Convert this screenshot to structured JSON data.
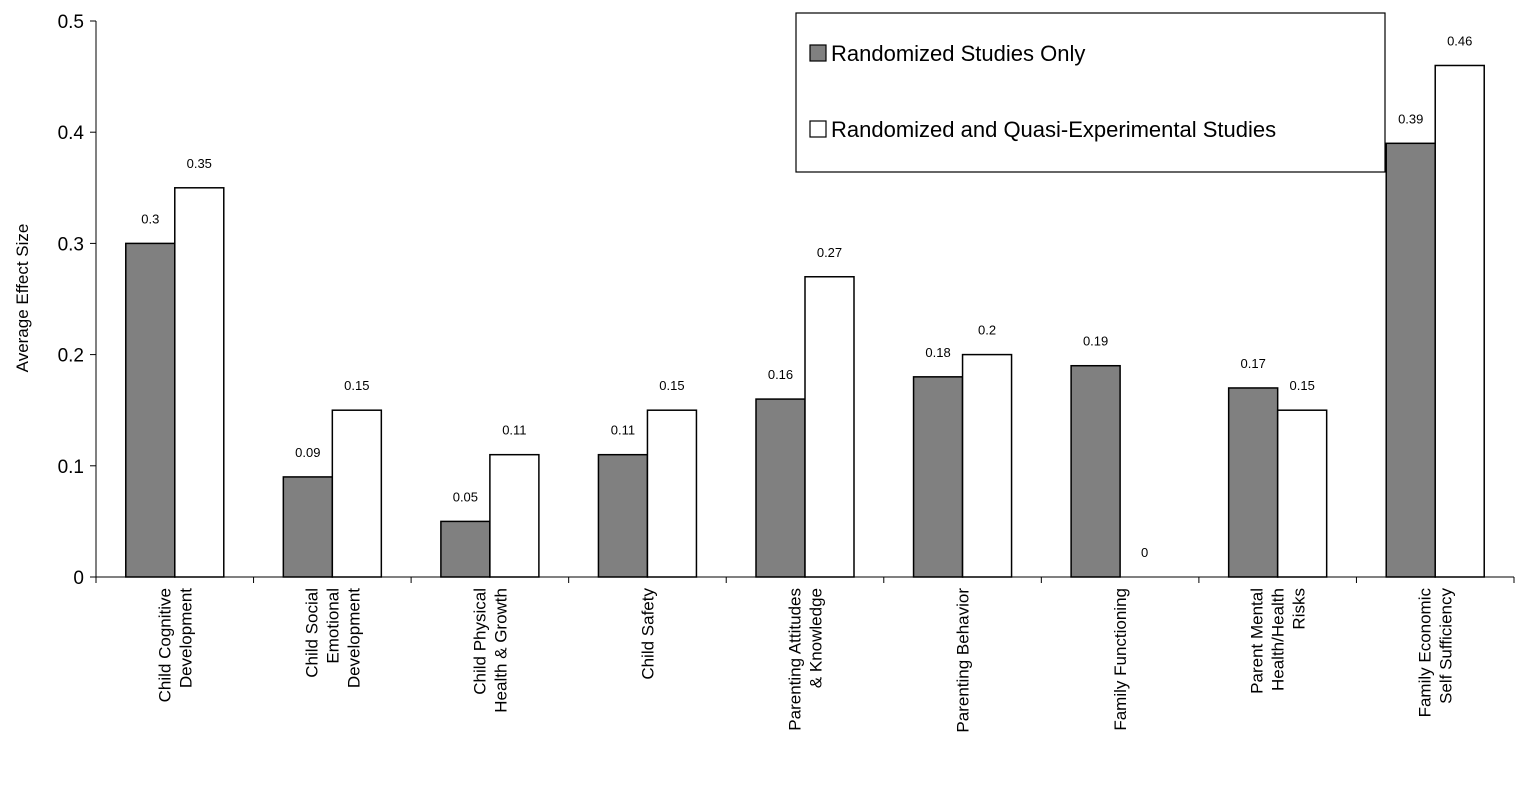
{
  "chart_data": {
    "type": "bar",
    "ylabel": "Average Effect Size",
    "ylim": [
      0,
      0.5
    ],
    "yticks": [
      "0",
      "0.1",
      "0.2",
      "0.3",
      "0.4",
      "0.5"
    ],
    "grid": false,
    "legend_position": "top-right",
    "categories": [
      [
        "Child Cognitive",
        "Development"
      ],
      [
        "Child Social",
        "Emotional",
        "Development"
      ],
      [
        "Child Physical",
        "Health & Growth"
      ],
      [
        "Child Safety"
      ],
      [
        "Parenting Attitudes",
        "& Knowledge"
      ],
      [
        "Parenting Behavior"
      ],
      [
        "Family Functioning"
      ],
      [
        "Parent Mental",
        "Health/Health",
        "Risks"
      ],
      [
        "Family Economic",
        "Self Sufficiency"
      ]
    ],
    "series": [
      {
        "name": "Randomized Studies Only",
        "color": "#808080",
        "values": [
          0.3,
          0.09,
          0.05,
          0.11,
          0.16,
          0.18,
          0.19,
          0.17,
          0.39
        ],
        "labels": [
          "0.3",
          "0.09",
          "0.05",
          "0.11",
          "0.16",
          "0.18",
          "0.19",
          "0.17",
          "0.39"
        ]
      },
      {
        "name": "Randomized and Quasi-Experimental Studies",
        "color": "#ffffff",
        "values": [
          0.35,
          0.15,
          0.11,
          0.15,
          0.27,
          0.2,
          0,
          0.15,
          0.46
        ],
        "labels": [
          "0.35",
          "0.15",
          "0.11",
          "0.15",
          "0.27",
          "0.2",
          "0",
          "0.15",
          "0.46"
        ]
      }
    ]
  }
}
